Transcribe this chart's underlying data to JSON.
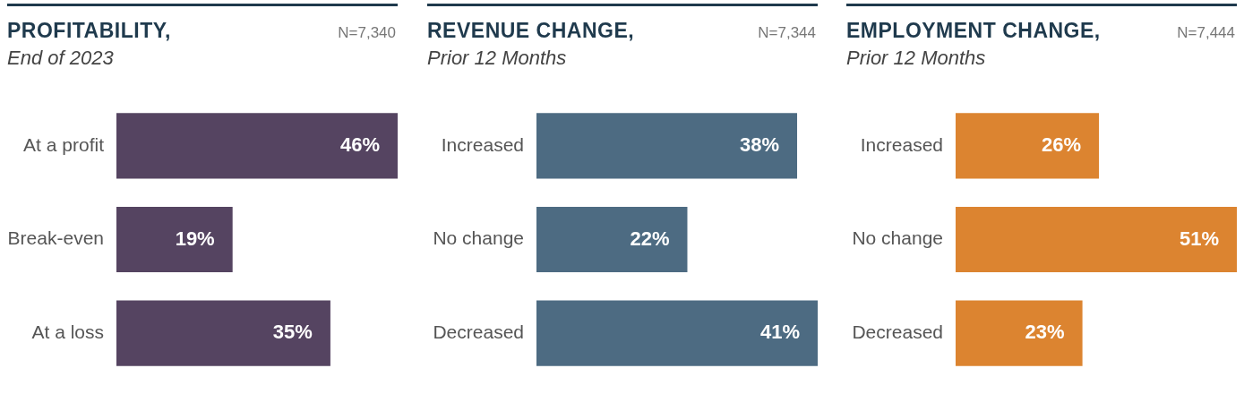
{
  "chart_data": [
    {
      "type": "bar",
      "orientation": "horizontal",
      "title": "PROFITABILITY,",
      "subtitle": "End of 2023",
      "annotations": [
        "N=7,340"
      ],
      "categories": [
        "At a profit",
        "Break-even",
        "At a loss"
      ],
      "values": [
        46,
        19,
        35
      ],
      "value_labels": [
        "46%",
        "19%",
        "35%"
      ],
      "color": "#554461"
    },
    {
      "type": "bar",
      "orientation": "horizontal",
      "title": "REVENUE CHANGE,",
      "subtitle": "Prior 12 Months",
      "annotations": [
        "N=7,344"
      ],
      "categories": [
        "Increased",
        "No change",
        "Decreased"
      ],
      "values": [
        38,
        22,
        41
      ],
      "value_labels": [
        "38%",
        "22%",
        "41%"
      ],
      "color": "#4d6b82"
    },
    {
      "type": "bar",
      "orientation": "horizontal",
      "title": "EMPLOYMENT CHANGE,",
      "subtitle": "Prior 12 Months",
      "annotations": [
        "N=7,444"
      ],
      "categories": [
        "Increased",
        "No change",
        "Decreased"
      ],
      "values": [
        26,
        51,
        23
      ],
      "value_labels": [
        "26%",
        "51%",
        "23%"
      ],
      "color": "#dc8430"
    }
  ]
}
